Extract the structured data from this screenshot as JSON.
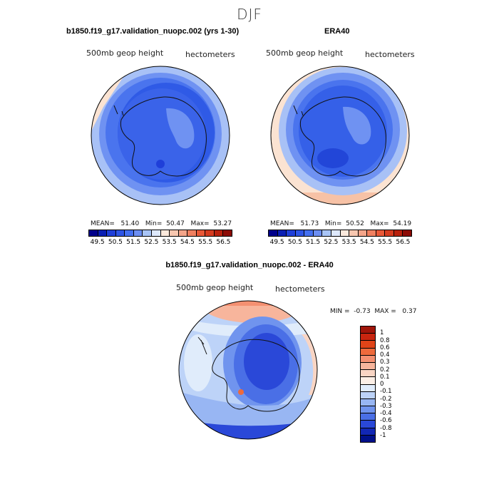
{
  "main_title": "DJF",
  "panel_left": {
    "title": "b1850.f19_g17.validation_nuopc.002 (yrs 1-30)",
    "variable": "500mb geop height",
    "units": "hectometers",
    "mean_label": "MEAN=",
    "mean": "51.40",
    "min_label": "Min=",
    "min": "50.47",
    "max_label": "Max=",
    "max": "53.27"
  },
  "panel_right": {
    "title": "ERA40",
    "variable": "500mb geop height",
    "units": "hectometers",
    "mean_label": "MEAN=",
    "mean": "51.73",
    "min_label": "Min=",
    "min": "50.52",
    "max_label": "Max=",
    "max": "54.19"
  },
  "colorbar_levels": [
    "49.5",
    "50.5",
    "51.5",
    "52.5",
    "53.5",
    "54.5",
    "55.5",
    "56.5"
  ],
  "colorbar_colors": [
    "#00008b",
    "#0a1fb4",
    "#1f3fd9",
    "#2e55e6",
    "#4470f0",
    "#6c8ef2",
    "#a8c4f6",
    "#dde8fb",
    "#fbe9dc",
    "#f8c7b0",
    "#f4a58a",
    "#f08060",
    "#e95837",
    "#d53b1f",
    "#b8200c",
    "#8c0b05"
  ],
  "diff_panel": {
    "title": "b1850.f19_g17.validation_nuopc.002 - ERA40",
    "variable": "500mb geop height",
    "units": "hectometers",
    "min_label": "MIN =",
    "min": "-0.73",
    "max_label": "MAX =",
    "max": "0.37"
  },
  "diff_levels": [
    "1",
    "0.8",
    "0.6",
    "0.4",
    "0.3",
    "0.2",
    "0.1",
    "0",
    "-0.1",
    "-0.2",
    "-0.3",
    "-0.4",
    "-0.6",
    "-0.8",
    "-1"
  ],
  "diff_colors": [
    "#a0150a",
    "#c8250f",
    "#e04418",
    "#ee6a3c",
    "#f49071",
    "#f7b59c",
    "#f9d5c4",
    "#fcefe6",
    "#e0ecfb",
    "#bdd3f8",
    "#98b6f3",
    "#7094ee",
    "#4a6fe6",
    "#2a48d8",
    "#1227b5",
    "#00108a"
  ],
  "colors": {
    "deep_blue": "#2b55e0",
    "mid_blue": "#3d66ee",
    "light_blue": "#6f92f2",
    "pale_blue": "#a8c1f6",
    "very_pale_blue": "#dfe9fb",
    "pale_orange": "#fbe3d2",
    "light_orange": "#f7c2a6",
    "orange": "#f2a07f"
  }
}
